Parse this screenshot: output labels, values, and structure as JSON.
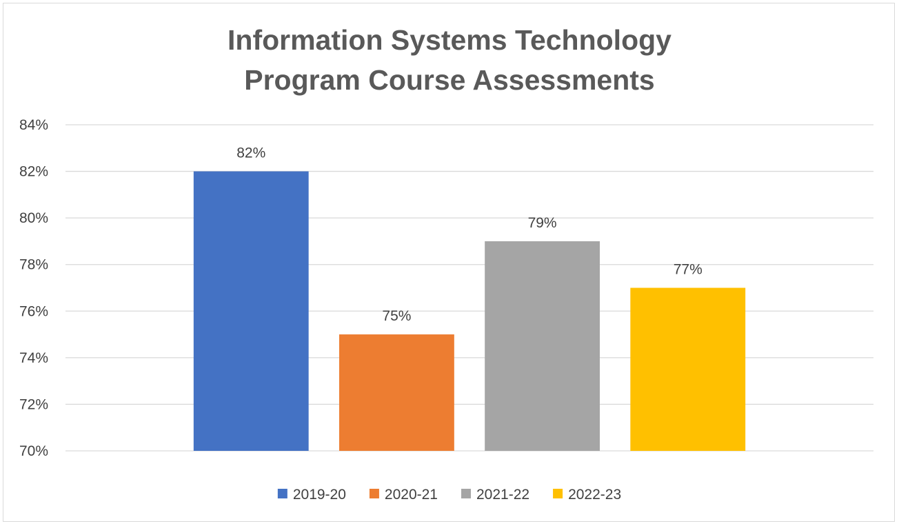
{
  "chart_data": {
    "type": "bar",
    "title": [
      "Information Systems Technology",
      "Program Course Assessments"
    ],
    "xlabel": "",
    "ylabel": "",
    "ylim": [
      70,
      84
    ],
    "ytick_step": 2,
    "y_unit": "%",
    "grid": true,
    "legend_position": "bottom",
    "categories": [
      "2019-20",
      "2020-21",
      "2021-22",
      "2022-23"
    ],
    "values": [
      82,
      75,
      79,
      77
    ],
    "data_labels": [
      "82%",
      "75%",
      "79%",
      "77%"
    ],
    "colors": [
      "#4472C4",
      "#ED7D31",
      "#A5A5A5",
      "#FFC000"
    ],
    "gridline_color": "#d9d9d9",
    "label_color": "#404040",
    "title_color": "#595959"
  }
}
